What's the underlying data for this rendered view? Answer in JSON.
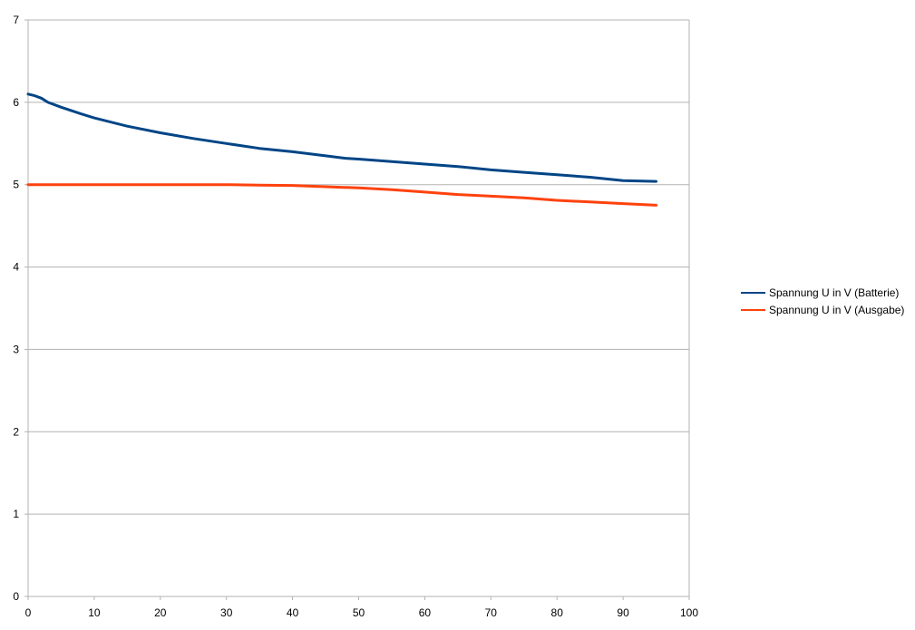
{
  "chart_data": {
    "type": "line",
    "title": "",
    "xlabel": "",
    "ylabel": "",
    "xlim": [
      0,
      100
    ],
    "ylim": [
      0,
      7
    ],
    "x_ticks": [
      0,
      10,
      20,
      30,
      40,
      50,
      60,
      70,
      80,
      90,
      100
    ],
    "y_ticks": [
      0,
      1,
      2,
      3,
      4,
      5,
      6,
      7
    ],
    "grid": "horizontal",
    "legend_position": "right",
    "series": [
      {
        "name": "Spannung U in V (Batterie)",
        "color": "#004586",
        "points": [
          [
            0,
            6.1
          ],
          [
            1,
            6.08
          ],
          [
            2,
            6.05
          ],
          [
            3,
            6.0
          ],
          [
            5,
            5.94
          ],
          [
            8,
            5.86
          ],
          [
            10,
            5.81
          ],
          [
            15,
            5.71
          ],
          [
            20,
            5.63
          ],
          [
            25,
            5.56
          ],
          [
            30,
            5.5
          ],
          [
            35,
            5.44
          ],
          [
            40,
            5.4
          ],
          [
            45,
            5.35
          ],
          [
            48,
            5.32
          ],
          [
            50,
            5.31
          ],
          [
            55,
            5.28
          ],
          [
            60,
            5.25
          ],
          [
            65,
            5.22
          ],
          [
            70,
            5.18
          ],
          [
            75,
            5.15
          ],
          [
            80,
            5.12
          ],
          [
            85,
            5.09
          ],
          [
            90,
            5.05
          ],
          [
            95,
            5.04
          ]
        ]
      },
      {
        "name": "Spannung U in V (Ausgabe)",
        "color": "#ff420e",
        "points": [
          [
            0,
            5.0
          ],
          [
            10,
            5.0
          ],
          [
            20,
            5.0
          ],
          [
            30,
            5.0
          ],
          [
            35,
            4.995
          ],
          [
            40,
            4.99
          ],
          [
            45,
            4.975
          ],
          [
            50,
            4.96
          ],
          [
            55,
            4.94
          ],
          [
            60,
            4.91
          ],
          [
            65,
            4.88
          ],
          [
            70,
            4.86
          ],
          [
            75,
            4.84
          ],
          [
            80,
            4.81
          ],
          [
            85,
            4.79
          ],
          [
            90,
            4.77
          ],
          [
            95,
            4.75
          ]
        ]
      }
    ]
  }
}
